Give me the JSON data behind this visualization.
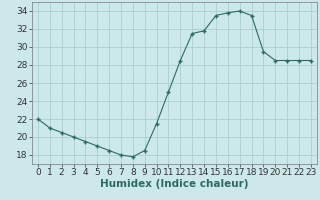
{
  "x": [
    0,
    1,
    2,
    3,
    4,
    5,
    6,
    7,
    8,
    9,
    10,
    11,
    12,
    13,
    14,
    15,
    16,
    17,
    18,
    19,
    20,
    21,
    22,
    23
  ],
  "y": [
    22,
    21,
    20.5,
    20,
    19.5,
    19,
    18.5,
    18,
    17.8,
    18.5,
    21.5,
    25,
    28.5,
    31.5,
    31.8,
    33.5,
    33.8,
    34,
    33.5,
    29.5,
    28.5,
    28.5,
    28.5,
    28.5
  ],
  "line_color": "#2e6b5e",
  "marker_color": "#2e6b5e",
  "bg_color": "#cce8e8",
  "grid_color": "#aacfcf",
  "xlabel": "Humidex (Indice chaleur)",
  "ylabel": "",
  "xlim": [
    -0.5,
    23.5
  ],
  "ylim": [
    17,
    35
  ],
  "yticks": [
    18,
    20,
    22,
    24,
    26,
    28,
    30,
    32,
    34
  ],
  "xticks": [
    0,
    1,
    2,
    3,
    4,
    5,
    6,
    7,
    8,
    9,
    10,
    11,
    12,
    13,
    14,
    15,
    16,
    17,
    18,
    19,
    20,
    21,
    22,
    23
  ],
  "tick_fontsize": 6.5,
  "xlabel_fontsize": 7.5
}
